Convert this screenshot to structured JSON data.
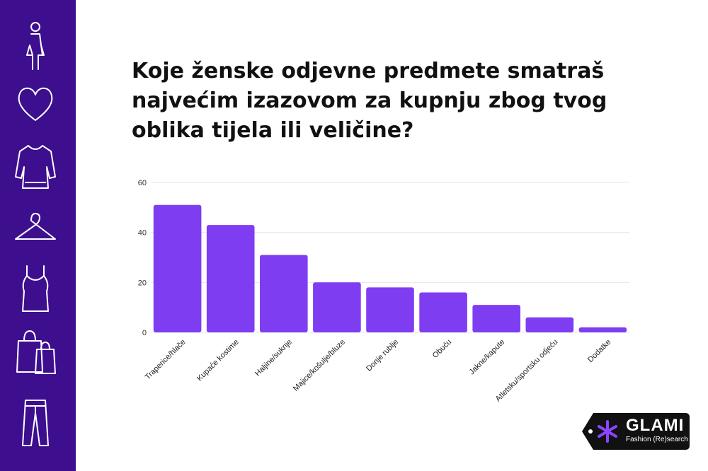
{
  "title": "Koje ženske odjevne predmete smatraš\nnajvećim izazovom za kupnju zbog tvog\noblika tijela ili veličine?",
  "sidebar_icons": [
    "woman-icon",
    "heart-icon",
    "dress-icon",
    "hanger-icon",
    "tank-top-icon",
    "shopping-bags-icon",
    "jeans-icon"
  ],
  "brand": {
    "name": "GLAMI",
    "subtitle": "Fashion (Re)search"
  },
  "colors": {
    "sidebar": "#3d0f8f",
    "bar": "#7f3df2",
    "brand_badge": "#111111",
    "brand_star": "#8b44ff"
  },
  "chart_data": {
    "type": "bar",
    "title": "",
    "xlabel": "",
    "ylabel": "",
    "categories": [
      "Traperice/hlače",
      "Kupaće kostime",
      "Haljine/suknje",
      "Majice/košulje/bluze",
      "Donje rublje",
      "Obuću",
      "Jakne/kapute",
      "Atletsku/sportsku odjeću",
      "Dodatke"
    ],
    "values": [
      51,
      43,
      31,
      20,
      18,
      16,
      11,
      6,
      2
    ],
    "ylim": [
      0,
      60
    ],
    "yticks": [
      0,
      20,
      40,
      60
    ],
    "grid": true,
    "legend": "none"
  }
}
